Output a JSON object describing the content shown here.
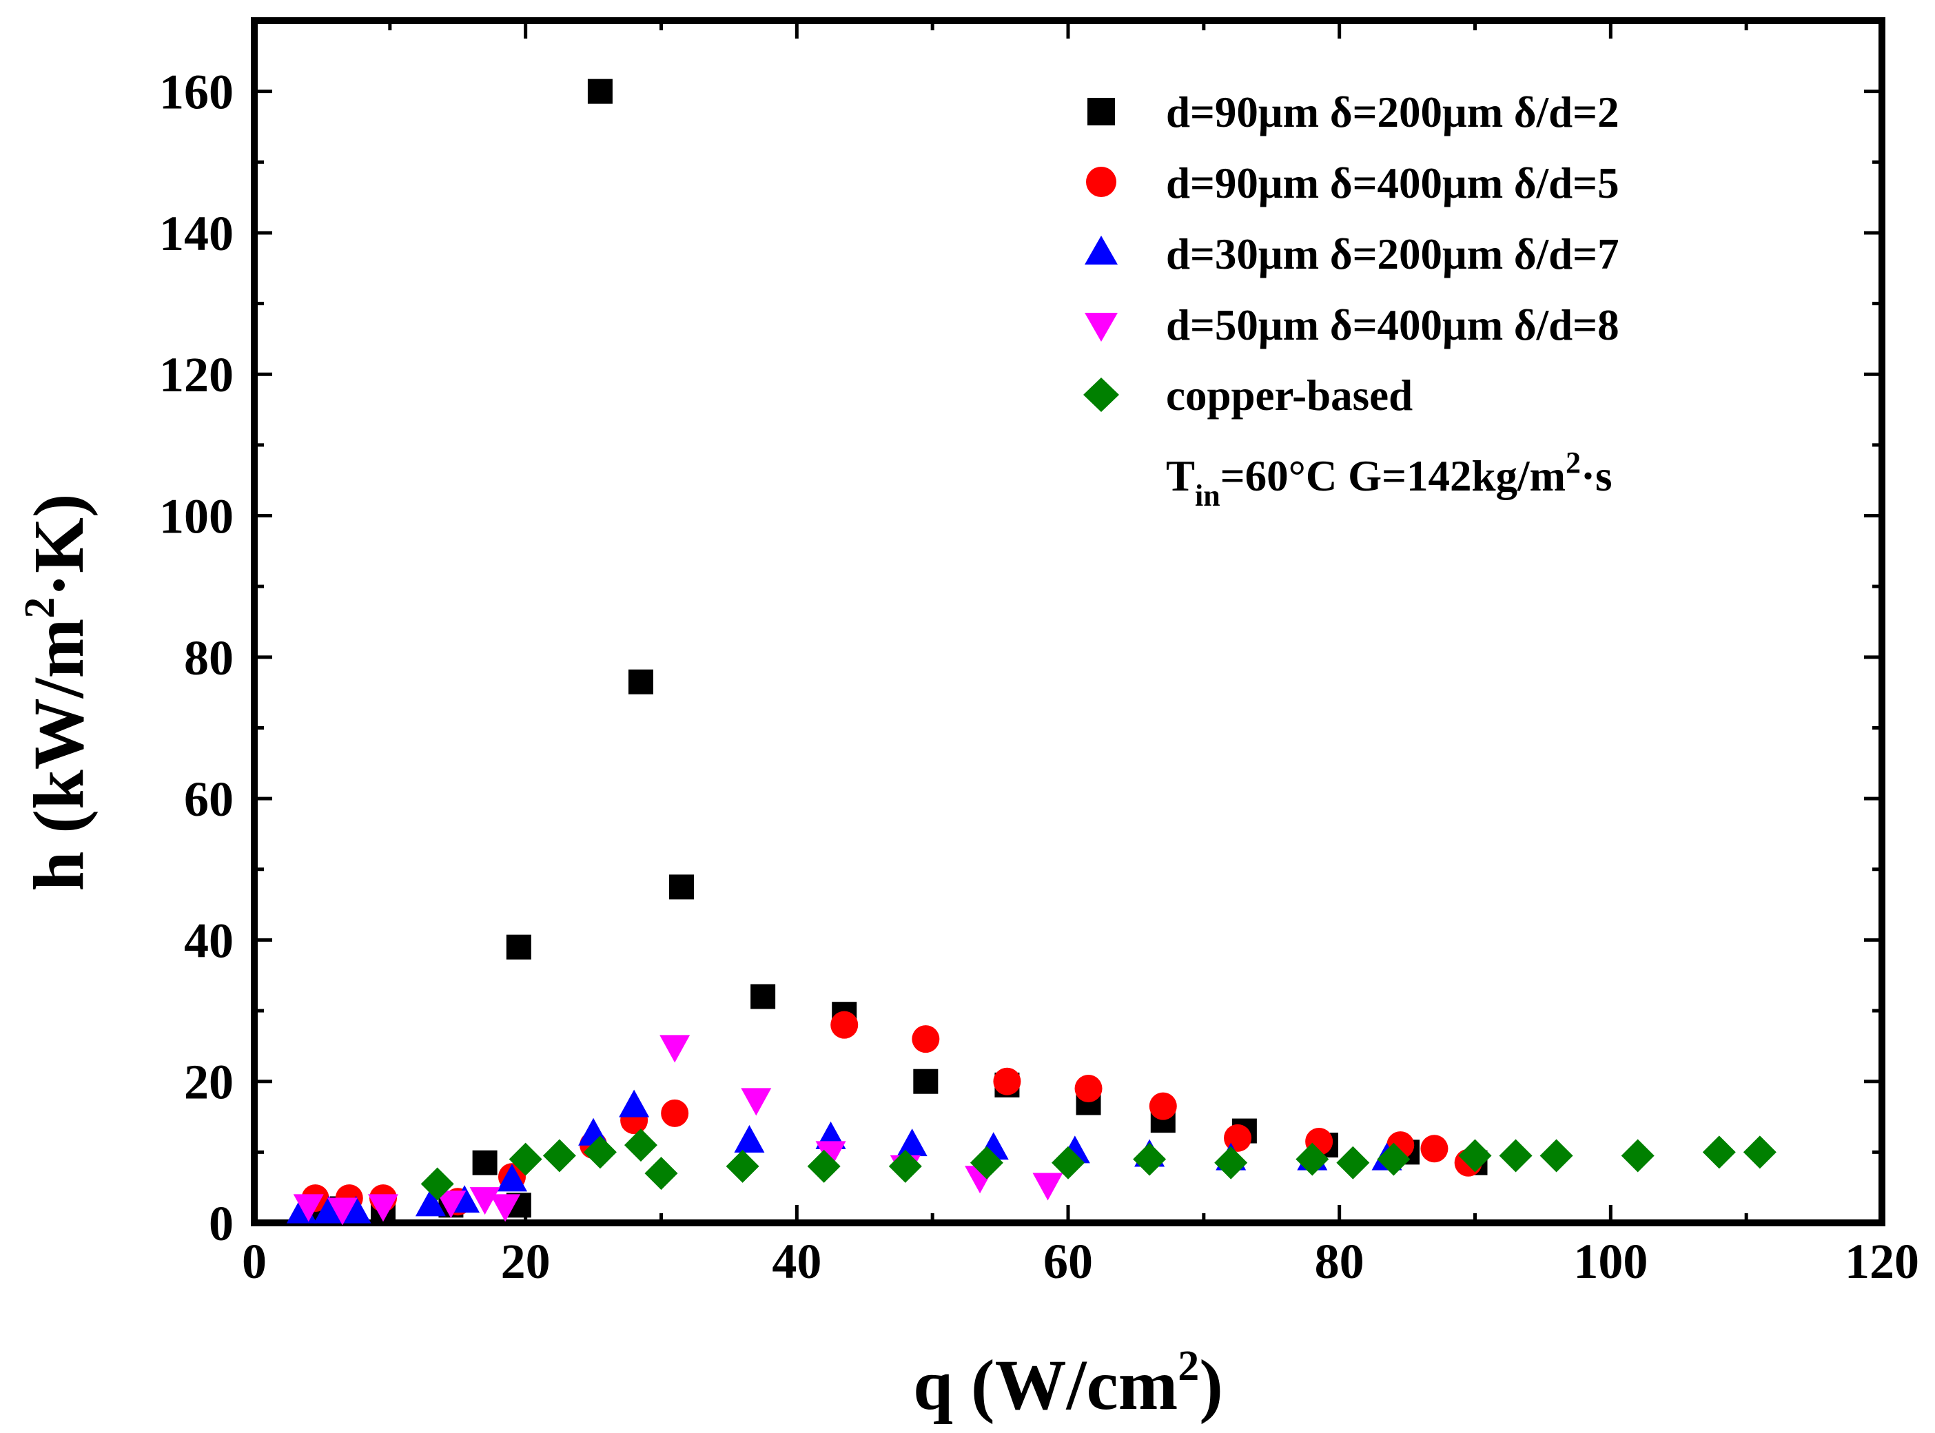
{
  "chart_data": {
    "type": "scatter",
    "title": "",
    "xlabel": "q (W/cm",
    "xlabel_sup": "2",
    "xlabel_end": ")",
    "ylabel": "h (kW/m",
    "ylabel_sup": "2",
    "ylabel_end": "·K)",
    "xlim": [
      0,
      120
    ],
    "ylim": [
      0,
      170
    ],
    "xticks": [
      0,
      20,
      40,
      60,
      80,
      100,
      120
    ],
    "yticks": [
      0,
      20,
      40,
      60,
      80,
      100,
      120,
      140,
      160
    ],
    "grid": false,
    "legend_position": "top-right",
    "conditions": {
      "t_main": "T",
      "t_sub": "in",
      "t_rest": "=60°C   G=142kg/m",
      "g_sup": "2",
      "g_rest": "·s"
    },
    "series": [
      {
        "name": "d=90μm  δ=200μm δ/d=2",
        "marker": "square",
        "color": "#000000",
        "points": [
          [
            4.5,
            2
          ],
          [
            6.5,
            2
          ],
          [
            9.5,
            1.5
          ],
          [
            14.5,
            2.5
          ],
          [
            17,
            8.5
          ],
          [
            19.5,
            2.5
          ],
          [
            19.5,
            39
          ],
          [
            25.5,
            160
          ],
          [
            28.5,
            76.5
          ],
          [
            31.5,
            47.5
          ],
          [
            37.5,
            32
          ],
          [
            43.5,
            29.5
          ],
          [
            49.5,
            20
          ],
          [
            55.5,
            19.5
          ],
          [
            61.5,
            17
          ],
          [
            67,
            14.5
          ],
          [
            73,
            13
          ],
          [
            79,
            11
          ],
          [
            85,
            10
          ],
          [
            90,
            8.5
          ]
        ]
      },
      {
        "name": "d=90μm  δ=400μm δ/d=5",
        "marker": "circle",
        "color": "#ff0000",
        "points": [
          [
            4.5,
            3.5
          ],
          [
            7,
            3.5
          ],
          [
            9.5,
            3.5
          ],
          [
            15,
            3
          ],
          [
            19,
            6.5
          ],
          [
            25,
            11
          ],
          [
            28,
            14.5
          ],
          [
            31,
            15.5
          ],
          [
            43.5,
            28
          ],
          [
            49.5,
            26
          ],
          [
            55.5,
            20
          ],
          [
            61.5,
            19
          ],
          [
            67,
            16.5
          ],
          [
            72.5,
            12
          ],
          [
            78.5,
            11.5
          ],
          [
            84.5,
            11
          ],
          [
            87,
            10.5
          ],
          [
            89.5,
            8.5
          ]
        ]
      },
      {
        "name": "d=30μm  δ=200μm δ/d=7",
        "marker": "triangle-up",
        "color": "#0000ff",
        "points": [
          [
            3.5,
            1.5
          ],
          [
            5.5,
            1.5
          ],
          [
            7.5,
            1.5
          ],
          [
            13,
            2.5
          ],
          [
            15.5,
            3
          ],
          [
            19,
            6
          ],
          [
            25,
            12.5
          ],
          [
            28,
            16.5
          ],
          [
            36.5,
            11.5
          ],
          [
            42.5,
            12
          ],
          [
            48.5,
            11
          ],
          [
            54.5,
            10.5
          ],
          [
            60.5,
            10
          ],
          [
            66,
            9.5
          ],
          [
            72,
            9
          ],
          [
            78,
            9
          ],
          [
            83.5,
            9
          ]
        ]
      },
      {
        "name": "d=50μm  δ=400μm δ/d=8",
        "marker": "triangle-down",
        "color": "#ff00ff",
        "points": [
          [
            4,
            2.5
          ],
          [
            6.5,
            2
          ],
          [
            9.5,
            2.5
          ],
          [
            14.5,
            3
          ],
          [
            17,
            3.5
          ],
          [
            18.5,
            2.5
          ],
          [
            31,
            25
          ],
          [
            37,
            17.5
          ],
          [
            42.5,
            10
          ],
          [
            48,
            8
          ],
          [
            53.5,
            6.5
          ],
          [
            58.5,
            5.5
          ]
        ]
      },
      {
        "name": "copper-based",
        "marker": "diamond",
        "color": "#008000",
        "points": [
          [
            13.5,
            5.5
          ],
          [
            20,
            9
          ],
          [
            22.5,
            9.5
          ],
          [
            25.5,
            10
          ],
          [
            28.5,
            11
          ],
          [
            30,
            7
          ],
          [
            36,
            8
          ],
          [
            42,
            8
          ],
          [
            48,
            8
          ],
          [
            54,
            8.5
          ],
          [
            60,
            8.5
          ],
          [
            66,
            9
          ],
          [
            72,
            8.5
          ],
          [
            78,
            9
          ],
          [
            81,
            8.5
          ],
          [
            84,
            9
          ],
          [
            90,
            9.5
          ],
          [
            93,
            9.5
          ],
          [
            96,
            9.5
          ],
          [
            102,
            9.5
          ],
          [
            108,
            10
          ],
          [
            111,
            10
          ]
        ]
      }
    ]
  }
}
